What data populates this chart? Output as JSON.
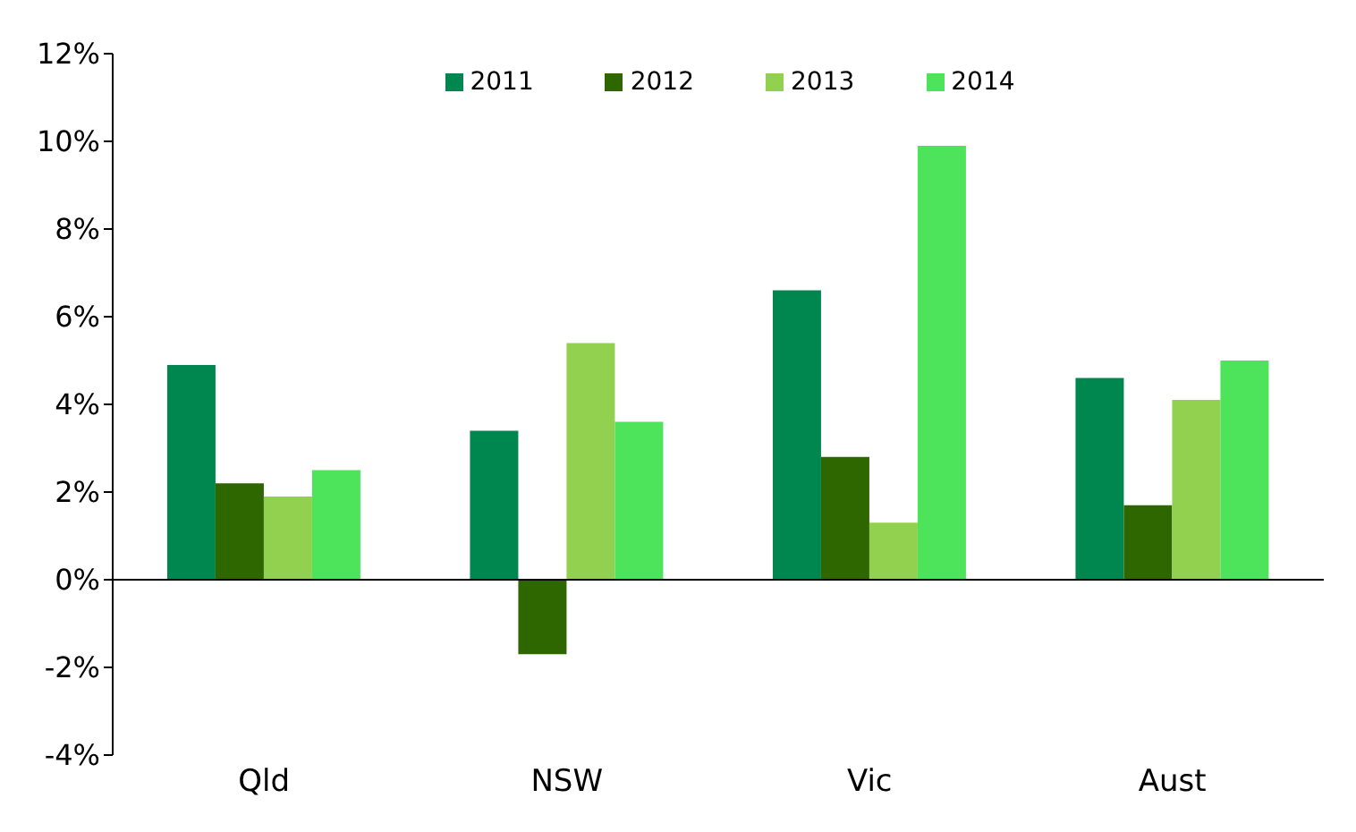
{
  "chart_data": {
    "type": "bar",
    "categories": [
      "Qld",
      "NSW",
      "Vic",
      "Aust"
    ],
    "series": [
      {
        "name": "2011",
        "color": "#00874f",
        "values": [
          4.9,
          3.4,
          6.6,
          4.6
        ]
      },
      {
        "name": "2012",
        "color": "#2e6600",
        "values": [
          2.2,
          -1.7,
          2.8,
          1.7
        ]
      },
      {
        "name": "2013",
        "color": "#92d050",
        "values": [
          1.9,
          5.4,
          1.3,
          4.1
        ]
      },
      {
        "name": "2014",
        "color": "#4de35a",
        "values": [
          2.5,
          3.6,
          9.9,
          5.0
        ]
      }
    ],
    "ylim": [
      -4,
      12
    ],
    "yticks": [
      {
        "value": -4,
        "label": "-4%"
      },
      {
        "value": -2,
        "label": "-2%"
      },
      {
        "value": 0,
        "label": "0%"
      },
      {
        "value": 2,
        "label": "2%"
      },
      {
        "value": 4,
        "label": "4%"
      },
      {
        "value": 6,
        "label": "6%"
      },
      {
        "value": 8,
        "label": "8%"
      },
      {
        "value": 10,
        "label": "10%"
      },
      {
        "value": 12,
        "label": "12%"
      }
    ],
    "ref_lines": [
      {
        "axis": "y",
        "value": 0,
        "color": "#000000"
      }
    ],
    "legend": "top"
  }
}
